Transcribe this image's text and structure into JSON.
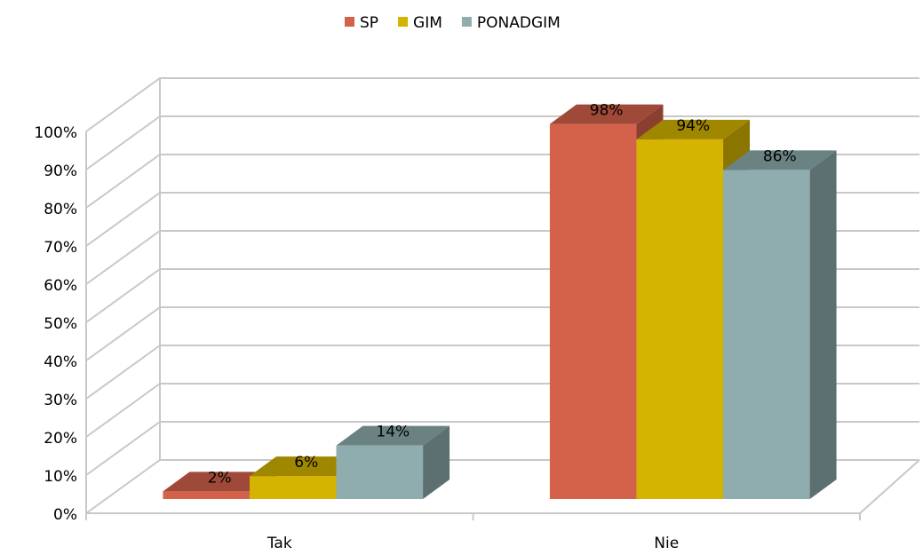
{
  "chart_data": {
    "type": "bar3d",
    "categories": [
      "Tak",
      "Nie"
    ],
    "series": [
      {
        "name": "SP",
        "color": "#d4614a",
        "values": [
          2,
          98
        ],
        "value_labels": [
          "2%",
          "98%"
        ]
      },
      {
        "name": "GIM",
        "color": "#d4b400",
        "values": [
          6,
          94
        ],
        "value_labels": [
          "6%",
          "94%"
        ]
      },
      {
        "name": "PONADGIM",
        "color": "#8fadae",
        "values": [
          14,
          86
        ],
        "value_labels": [
          "14%",
          "86%"
        ]
      }
    ],
    "ylim": [
      0,
      100
    ],
    "yticks": [
      {
        "value": 0,
        "label": "0%"
      },
      {
        "value": 10,
        "label": "10%"
      },
      {
        "value": 20,
        "label": "20%"
      },
      {
        "value": 30,
        "label": "30%"
      },
      {
        "value": 40,
        "label": "40%"
      },
      {
        "value": 50,
        "label": "50%"
      },
      {
        "value": 60,
        "label": "60%"
      },
      {
        "value": 70,
        "label": "70%"
      },
      {
        "value": 80,
        "label": "80%"
      },
      {
        "value": 90,
        "label": "90%"
      },
      {
        "value": 100,
        "label": "100%"
      }
    ],
    "grid": true,
    "legend": "top"
  }
}
